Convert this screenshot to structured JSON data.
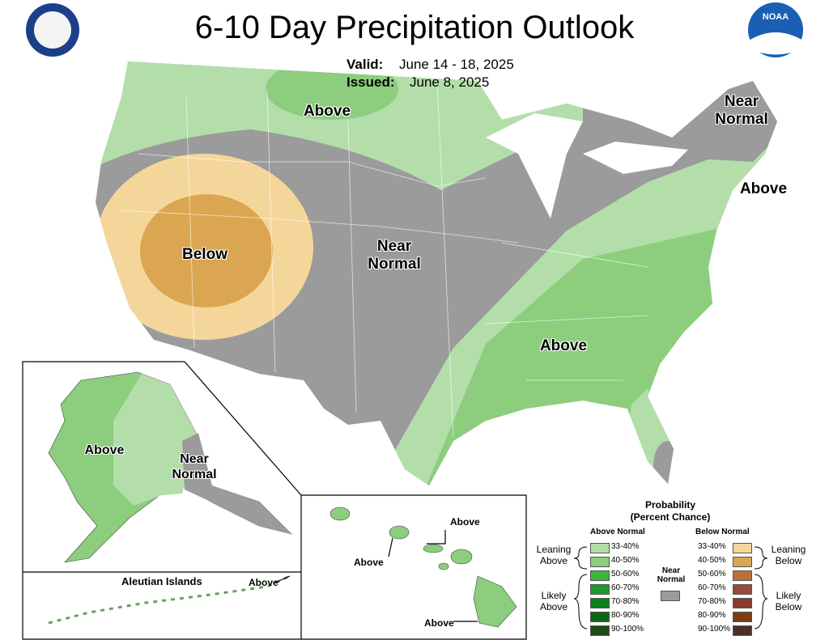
{
  "header": {
    "title": "6-10 Day Precipitation Outlook",
    "valid_label": "Valid:",
    "valid_dates": "June 14 - 18, 2025",
    "issued_label": "Issued:",
    "issued_date": "June 8, 2025",
    "noaa_logo": "NOAA"
  },
  "map": {
    "conus_labels": [
      "Above",
      "Near Normal",
      "Above",
      "Below",
      "Near Normal",
      "Above"
    ],
    "alaska_labels": [
      "Above",
      "Near Normal"
    ],
    "aleutian": {
      "title": "Aleutian Islands",
      "label": "Above"
    },
    "hawaii_labels": [
      "Above",
      "Above",
      "Above"
    ]
  },
  "legend": {
    "title": "Probability",
    "subtitle": "(Percent Chance)",
    "above_header": "Above Normal",
    "below_header": "Below Normal",
    "near_normal": "Near Normal",
    "near_color": "#9b9b9b",
    "leaning_above": "Leaning Above",
    "likely_above": "Likely Above",
    "leaning_below": "Leaning Below",
    "likely_below": "Likely Below",
    "above": [
      {
        "label": "33-40%",
        "color": "#b3deaa"
      },
      {
        "label": "40-50%",
        "color": "#8dcd7e"
      },
      {
        "label": "50-60%",
        "color": "#3db43a"
      },
      {
        "label": "60-70%",
        "color": "#1e9a2a"
      },
      {
        "label": "70-80%",
        "color": "#0d7f1c"
      },
      {
        "label": "80-90%",
        "color": "#0b6618"
      },
      {
        "label": "90-100%",
        "color": "#224a17"
      }
    ],
    "below": [
      {
        "label": "33-40%",
        "color": "#f5d69a"
      },
      {
        "label": "40-50%",
        "color": "#dba651"
      },
      {
        "label": "50-60%",
        "color": "#bd6f3a"
      },
      {
        "label": "60-70%",
        "color": "#9a4a3a"
      },
      {
        "label": "70-80%",
        "color": "#8b3a32"
      },
      {
        "label": "80-90%",
        "color": "#7a3d10"
      },
      {
        "label": "90-100%",
        "color": "#4d2f2a"
      }
    ]
  }
}
